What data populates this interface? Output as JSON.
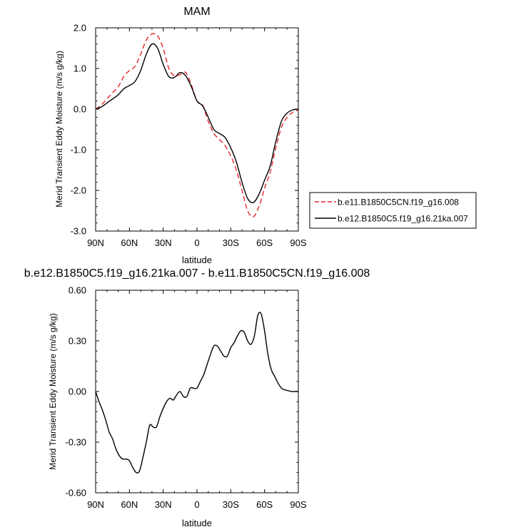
{
  "chart_data": [
    {
      "type": "line",
      "title": "MAM",
      "xlabel": "latitude",
      "ylabel": "Merid Transient Eddy Moisture (m/s g/kg)",
      "xlim": [
        90,
        -90
      ],
      "ylim": [
        -3.0,
        2.0
      ],
      "x_ticks": [
        90,
        60,
        30,
        0,
        -30,
        -60,
        -90
      ],
      "x_tick_labels": [
        "90N",
        "60N",
        "30N",
        "0",
        "30S",
        "60S",
        "90S"
      ],
      "y_ticks": [
        2.0,
        1.0,
        0.0,
        -1.0,
        -2.0,
        -3.0
      ],
      "y_tick_labels": [
        "2.0",
        "1.0",
        "0.0",
        "-1.0",
        "-2.0",
        "-3.0"
      ],
      "legend_position": "right",
      "series": [
        {
          "name": "b.e11.B1850C5CN.f19_g16.008",
          "color": "#e8262a",
          "dash": "dashed",
          "x": [
            90,
            85,
            80,
            75,
            70,
            65,
            60,
            55,
            50,
            45,
            40,
            35,
            30,
            25,
            20,
            15,
            10,
            5,
            0,
            -5,
            -10,
            -15,
            -20,
            -25,
            -30,
            -35,
            -40,
            -45,
            -50,
            -55,
            -60,
            -65,
            -70,
            -75,
            -80,
            -85,
            -90
          ],
          "values": [
            0.0,
            0.1,
            0.25,
            0.4,
            0.55,
            0.8,
            0.95,
            1.05,
            1.35,
            1.7,
            1.85,
            1.8,
            1.5,
            1.0,
            0.82,
            0.85,
            0.9,
            0.6,
            0.2,
            0.1,
            -0.3,
            -0.6,
            -0.75,
            -0.9,
            -1.15,
            -1.5,
            -2.0,
            -2.5,
            -2.65,
            -2.4,
            -1.95,
            -1.55,
            -0.95,
            -0.45,
            -0.2,
            -0.08,
            -0.02
          ]
        },
        {
          "name": "b.e12.B1850C5.f19_g16.21ka.007",
          "color": "#000000",
          "dash": "solid",
          "x": [
            90,
            85,
            80,
            75,
            70,
            65,
            60,
            55,
            50,
            45,
            40,
            35,
            30,
            25,
            20,
            15,
            10,
            5,
            0,
            -5,
            -10,
            -15,
            -20,
            -25,
            -30,
            -35,
            -40,
            -45,
            -50,
            -55,
            -60,
            -65,
            -70,
            -75,
            -80,
            -85,
            -90
          ],
          "values": [
            0.0,
            0.05,
            0.15,
            0.25,
            0.35,
            0.5,
            0.58,
            0.68,
            0.95,
            1.35,
            1.6,
            1.5,
            1.1,
            0.8,
            0.78,
            0.9,
            0.82,
            0.55,
            0.2,
            0.08,
            -0.2,
            -0.5,
            -0.6,
            -0.7,
            -0.95,
            -1.3,
            -1.8,
            -2.2,
            -2.3,
            -2.1,
            -1.75,
            -1.4,
            -0.8,
            -0.3,
            -0.1,
            -0.02,
            0.0
          ]
        }
      ]
    },
    {
      "type": "line",
      "title": "b.e12.B1850C5.f19_g16.21ka.007 - b.e11.B1850C5CN.f19_g16.008",
      "xlabel": "latitude",
      "ylabel": "Merid Transient Eddy Moisture (m/s g/kg)",
      "xlim": [
        90,
        -90
      ],
      "ylim": [
        -0.6,
        0.6
      ],
      "x_ticks": [
        90,
        60,
        30,
        0,
        -30,
        -60,
        -90
      ],
      "x_tick_labels": [
        "90N",
        "60N",
        "30N",
        "0",
        "30S",
        "60S",
        "90S"
      ],
      "y_ticks": [
        0.6,
        0.3,
        0.0,
        -0.3,
        -0.6
      ],
      "y_tick_labels": [
        "0.60",
        "0.30",
        "0.00",
        "-0.30",
        "-0.60"
      ],
      "series": [
        {
          "color": "#000000",
          "x": [
            90,
            87,
            84,
            81,
            78,
            75,
            72,
            69,
            66,
            63,
            60,
            57,
            54,
            51,
            48,
            45,
            42,
            39,
            36,
            33,
            30,
            27,
            24,
            21,
            18,
            15,
            12,
            9,
            6,
            3,
            0,
            -3,
            -6,
            -9,
            -12,
            -15,
            -18,
            -21,
            -24,
            -27,
            -30,
            -33,
            -36,
            -39,
            -42,
            -45,
            -48,
            -51,
            -54,
            -57,
            -60,
            -63,
            -66,
            -69,
            -72,
            -75,
            -78,
            -81,
            -84,
            -87,
            -90
          ],
          "values": [
            0.0,
            -0.06,
            -0.11,
            -0.17,
            -0.24,
            -0.28,
            -0.34,
            -0.38,
            -0.4,
            -0.4,
            -0.41,
            -0.45,
            -0.48,
            -0.47,
            -0.39,
            -0.3,
            -0.2,
            -0.21,
            -0.21,
            -0.15,
            -0.1,
            -0.06,
            -0.04,
            -0.05,
            -0.02,
            0.0,
            -0.03,
            -0.03,
            0.02,
            0.02,
            0.02,
            0.06,
            0.1,
            0.16,
            0.22,
            0.27,
            0.27,
            0.24,
            0.21,
            0.21,
            0.26,
            0.29,
            0.33,
            0.36,
            0.35,
            0.3,
            0.28,
            0.33,
            0.45,
            0.46,
            0.36,
            0.22,
            0.13,
            0.09,
            0.05,
            0.02,
            0.01,
            0.005,
            0.0,
            0.0,
            0.0
          ]
        }
      ]
    }
  ]
}
